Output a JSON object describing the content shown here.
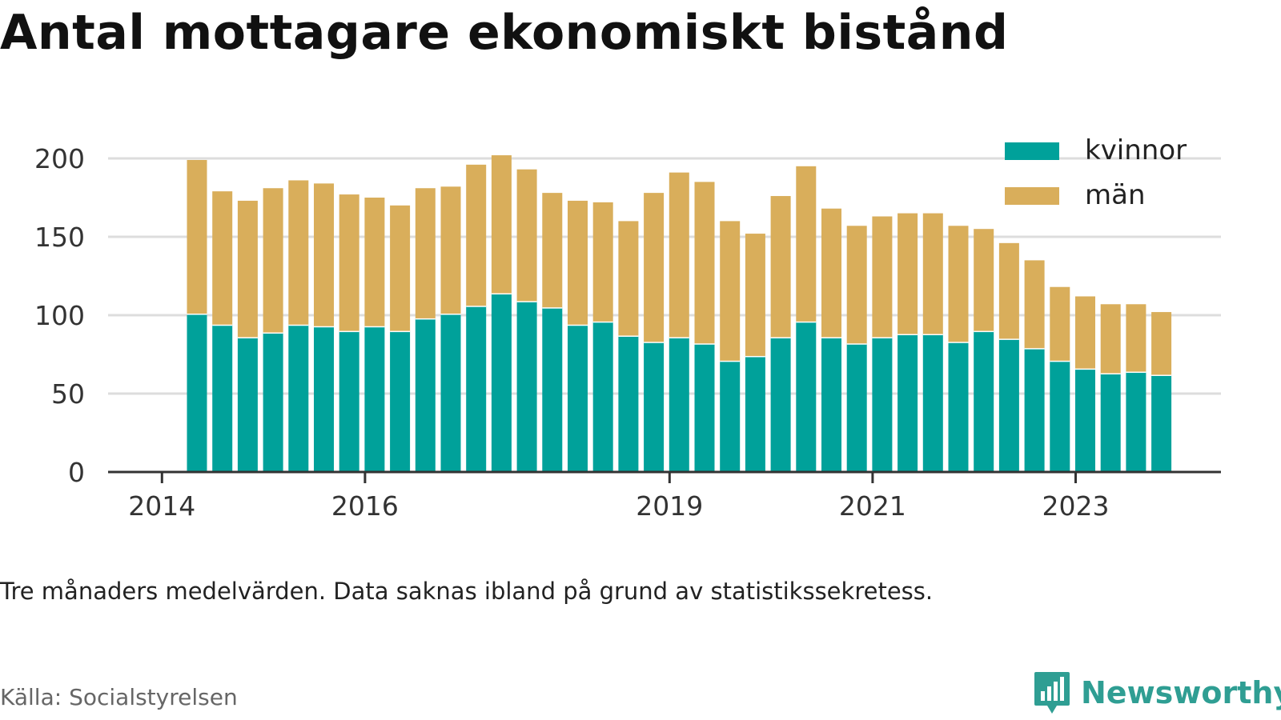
{
  "title": "Antal mottagare ekonomiskt bistånd",
  "note": "Tre månaders medelvärden. Data saknas ibland på grund av statistikssekretess.",
  "source": "Källa: Socialstyrelsen",
  "brand": {
    "name": "Newsworthy",
    "icon": "bar-chart-speech-bubble-icon"
  },
  "colors": {
    "kvinnor": "#00a19a",
    "man": "#d9ae5b",
    "grid": "#dddddd",
    "axis": "#333333",
    "brand": "#2f9e93"
  },
  "chart_data": {
    "type": "bar",
    "stacked": true,
    "title": "",
    "xlabel": "",
    "ylabel": "",
    "ylim": [
      0,
      200
    ],
    "yticks": [
      "0",
      "50",
      "100",
      "150",
      "200"
    ],
    "xticks": [
      "2014",
      "2016",
      "2019",
      "2021",
      "2023"
    ],
    "grid": true,
    "legend_position": "top-right",
    "categories": [
      "2014 Q2",
      "2014 Q3",
      "2014 Q4",
      "2015 Q1",
      "2015 Q2",
      "2015 Q3",
      "2015 Q4",
      "2016 Q1",
      "2016 Q2",
      "2016 Q3",
      "2016 Q4",
      "2017 Q1",
      "2017 Q2",
      "2017 Q3",
      "2017 Q4",
      "2018 Q1",
      "2018 Q2",
      "2018 Q3",
      "2018 Q4",
      "2019 Q1",
      "2019 Q2",
      "2019 Q3",
      "2019 Q4",
      "2020 Q1",
      "2020 Q2",
      "2020 Q3",
      "2020 Q4",
      "2021 Q1",
      "2021 Q2",
      "2021 Q3",
      "2021 Q4",
      "2022 Q1",
      "2022 Q2",
      "2022 Q3",
      "2022 Q4",
      "2023 Q1",
      "2023 Q2",
      "2023 Q3",
      "2023 Q4"
    ],
    "series": [
      {
        "name": "kvinnor",
        "values": [
          101,
          94,
          86,
          89,
          94,
          93,
          90,
          93,
          90,
          98,
          101,
          106,
          114,
          109,
          105,
          94,
          96,
          87,
          83,
          86,
          82,
          71,
          74,
          86,
          96,
          86,
          82,
          86,
          88,
          88,
          83,
          90,
          85,
          79,
          71,
          66,
          63,
          64,
          62
        ]
      },
      {
        "name": "män",
        "values": [
          98,
          85,
          87,
          92,
          92,
          91,
          87,
          82,
          80,
          83,
          81,
          90,
          88,
          84,
          73,
          79,
          76,
          73,
          95,
          105,
          103,
          89,
          78,
          90,
          99,
          82,
          75,
          77,
          77,
          77,
          74,
          65,
          61,
          56,
          47,
          46,
          44,
          43,
          40
        ]
      }
    ]
  }
}
